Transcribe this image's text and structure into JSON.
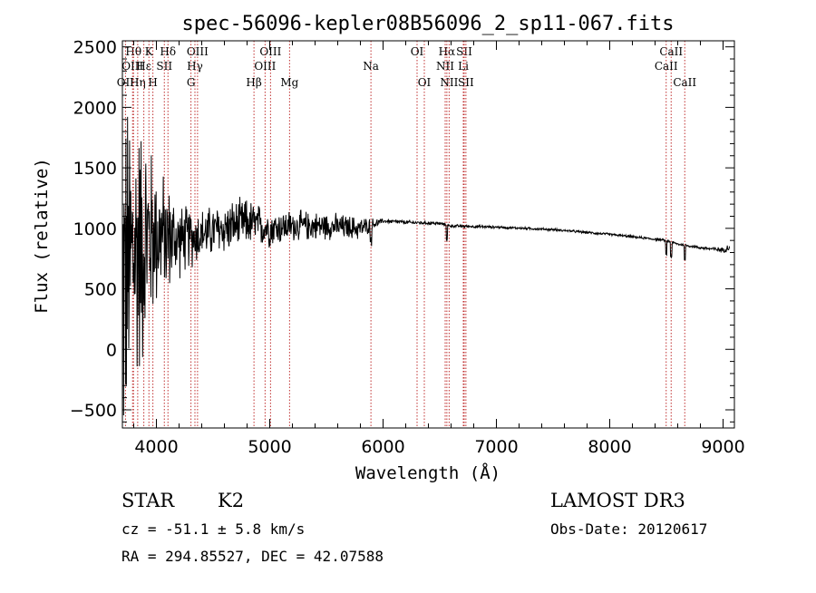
{
  "chart_data": {
    "type": "line",
    "title": "spec-56096-kepler08B56096_2_sp11-067.fits",
    "xlabel": "Wavelength (Å)",
    "ylabel": "Flux (relative)",
    "xlim": [
      3700,
      9100
    ],
    "ylim": [
      -650,
      2550
    ],
    "x_ticks": [
      4000,
      5000,
      6000,
      7000,
      8000,
      9000
    ],
    "y_ticks": [
      -500,
      0,
      500,
      1000,
      1500,
      2000,
      2500
    ],
    "spectral_lines": [
      {
        "label": "OII",
        "wavelength": 3727,
        "row": 2
      },
      {
        "label": "Hθ",
        "wavelength": 3798,
        "row": 0
      },
      {
        "label": "OIII",
        "wavelength": 3790,
        "row": 1
      },
      {
        "label": "Hη",
        "wavelength": 3835,
        "row": 2
      },
      {
        "label": "K",
        "wavelength": 3934,
        "row": 0
      },
      {
        "label": "Hε",
        "wavelength": 3889,
        "row": 1
      },
      {
        "label": "H",
        "wavelength": 3969,
        "row": 2
      },
      {
        "label": "SII",
        "wavelength": 4070,
        "row": 1
      },
      {
        "label": "Hδ",
        "wavelength": 4102,
        "row": 0
      },
      {
        "label": "OIII",
        "wavelength": 4363,
        "row": 0
      },
      {
        "label": "Hγ",
        "wavelength": 4340,
        "row": 1
      },
      {
        "label": "G",
        "wavelength": 4305,
        "row": 2
      },
      {
        "label": "Hβ",
        "wavelength": 4861,
        "row": 2
      },
      {
        "label": "OIII",
        "wavelength": 5007,
        "row": 0
      },
      {
        "label": "OIII",
        "wavelength": 4959,
        "row": 1
      },
      {
        "label": "Mg",
        "wavelength": 5175,
        "row": 2
      },
      {
        "label": "Na",
        "wavelength": 5893,
        "row": 1
      },
      {
        "label": "OI",
        "wavelength": 6300,
        "row": 0
      },
      {
        "label": "OI",
        "wavelength": 6364,
        "row": 2
      },
      {
        "label": "Hα",
        "wavelength": 6563,
        "row": 0
      },
      {
        "label": "NII",
        "wavelength": 6548,
        "row": 1
      },
      {
        "label": "NII",
        "wavelength": 6583,
        "row": 2
      },
      {
        "label": "SII",
        "wavelength": 6716,
        "row": 0
      },
      {
        "label": "Li",
        "wavelength": 6708,
        "row": 1
      },
      {
        "label": "SII",
        "wavelength": 6731,
        "row": 2
      },
      {
        "label": "CaII",
        "wavelength": 8542,
        "row": 0
      },
      {
        "label": "CaII",
        "wavelength": 8498,
        "row": 1
      },
      {
        "label": "CaII",
        "wavelength": 8662,
        "row": 2
      }
    ],
    "spectrum_anchors": {
      "description_of_shape": "noisy blue end; smooth continuum declining to red",
      "wavelength": [
        3700,
        3800,
        3900,
        4000,
        4200,
        4400,
        4600,
        4800,
        5000,
        5200,
        5500,
        5800,
        6000,
        6200,
        6500,
        6600,
        7000,
        7500,
        8000,
        8500,
        8600,
        8800,
        9000,
        9060
      ],
      "flux": [
        500,
        800,
        900,
        950,
        900,
        950,
        1000,
        1050,
        1000,
        1020,
        1020,
        1000,
        1060,
        1050,
        1040,
        1020,
        1010,
        990,
        950,
        900,
        870,
        840,
        820,
        850
      ],
      "noise": [
        1800,
        1500,
        1100,
        700,
        350,
        250,
        250,
        230,
        180,
        150,
        130,
        110,
        20,
        20,
        15,
        15,
        12,
        12,
        12,
        12,
        12,
        14,
        25,
        40
      ]
    }
  },
  "info": {
    "object_class": "STAR",
    "subclass": "K2",
    "survey": "LAMOST DR3",
    "cz": "cz = -51.1 ± 5.8 km/s",
    "obs_date": "Obs-Date: 20120617",
    "coords": "RA = 294.85527, DEC =  42.07588"
  }
}
